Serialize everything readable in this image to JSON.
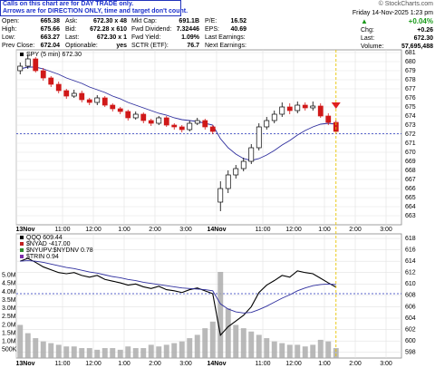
{
  "header": {
    "note": [
      "Calls on this chart are for DAY TRADE only.",
      "Arrows are for DIRECTION ONLY, time and target don't count."
    ],
    "copyright": "© StockCharts.com",
    "quote": [
      [
        [
          "Open:",
          "665.38"
        ],
        [
          "Ask:",
          "672.30 x 48"
        ],
        [
          "Mkt Cap:",
          "691.1B"
        ],
        [
          "P/E:",
          "16.52"
        ]
      ],
      [
        [
          "High:",
          "675.66"
        ],
        [
          "Bid:",
          "672.28 x 610"
        ],
        [
          "Fwd Dividend:",
          "7.32446"
        ],
        [
          "EPS:",
          "40.69"
        ]
      ],
      [
        [
          "Low:",
          "663.27"
        ],
        [
          "Last:",
          "672.30 x 1"
        ],
        [
          "Fwd Yield:",
          "1.09%"
        ],
        [
          "Last Earnings:"
        ]
      ],
      [
        [
          "Prev Close:",
          "672.04"
        ],
        [
          "Optionable:",
          "yes"
        ],
        [
          "SCTR (ETF):",
          "76.7"
        ],
        [
          "Next Earnings:"
        ]
      ]
    ],
    "date": "Friday 14-Nov-2025 1:23 pm",
    "change_pct": "+0.04%",
    "stats": [
      [
        "Chg:",
        "+0.26"
      ],
      [
        "Last:",
        "672.30"
      ],
      [
        "Volume:",
        "57,695,488"
      ]
    ]
  },
  "chart_data": [
    {
      "type": "candlestick",
      "legend": "SPY (5 min) 672.30",
      "up_color": "#000000",
      "down_color": "#d01818",
      "categories": [
        "13Nov",
        null,
        null,
        null,
        null,
        null,
        "11:00",
        null,
        null,
        null,
        "12:00",
        null,
        null,
        null,
        "1:00",
        null,
        null,
        null,
        "2:00",
        null,
        null,
        null,
        "3:00",
        null,
        null,
        null,
        "14Nov",
        null,
        null,
        null,
        null,
        null,
        "11:00",
        null,
        null,
        null,
        "12:00",
        null,
        null,
        null,
        "1:00",
        null,
        null,
        null,
        "2:00",
        null,
        null,
        null,
        "3:00",
        null
      ],
      "open": [
        679.0,
        679.5,
        680.3,
        679.0,
        678.2,
        677.5,
        676.8,
        676.2,
        676.5,
        675.8,
        675.5,
        676.0,
        675.2,
        674.8,
        674.5,
        673.8,
        674.2,
        673.5,
        673.2,
        673.8,
        673.0,
        672.8,
        672.5,
        673.2,
        673.5,
        672.8,
        664.5,
        666.0,
        667.5,
        668.2,
        669.0,
        670.5,
        672.8,
        673.5,
        674.2,
        675.0,
        674.6,
        675.2,
        674.9,
        675.1,
        674.0,
        673.3,
        null,
        null,
        null,
        null,
        null,
        null,
        null,
        null
      ],
      "high": [
        679.9,
        680.8,
        680.5,
        679.3,
        678.4,
        677.8,
        677.0,
        676.9,
        676.8,
        676.0,
        676.3,
        676.2,
        675.4,
        675.0,
        674.7,
        674.5,
        674.4,
        673.7,
        674.0,
        674.0,
        673.2,
        673.0,
        673.5,
        673.8,
        673.7,
        673.0,
        666.8,
        668.0,
        668.6,
        669.4,
        670.9,
        673.2,
        673.9,
        674.6,
        675.5,
        675.4,
        675.6,
        675.5,
        675.6,
        675.4,
        674.3,
        673.6,
        null,
        null,
        null,
        null,
        null,
        null,
        null,
        null
      ],
      "low": [
        678.6,
        679.2,
        678.8,
        677.9,
        677.2,
        676.5,
        675.9,
        676.0,
        675.5,
        675.2,
        675.2,
        675.0,
        674.5,
        674.2,
        673.5,
        673.6,
        673.2,
        672.9,
        673.0,
        672.8,
        672.5,
        672.2,
        672.3,
        673.0,
        672.5,
        672.0,
        663.5,
        665.5,
        667.1,
        667.9,
        668.7,
        670.2,
        672.5,
        673.2,
        673.9,
        674.2,
        674.3,
        674.6,
        674.6,
        673.8,
        673.0,
        672.0,
        null,
        null,
        null,
        null,
        null,
        null,
        null,
        null
      ],
      "close": [
        679.5,
        680.3,
        679.0,
        678.2,
        677.5,
        676.8,
        676.2,
        676.5,
        675.8,
        675.5,
        676.0,
        675.2,
        674.8,
        674.5,
        673.8,
        674.2,
        673.5,
        673.2,
        673.8,
        673.0,
        672.8,
        672.5,
        673.2,
        673.5,
        672.8,
        672.3,
        666.0,
        667.5,
        668.2,
        669.0,
        670.5,
        672.8,
        673.5,
        674.2,
        675.0,
        674.6,
        675.2,
        674.9,
        675.1,
        674.0,
        673.3,
        672.3,
        null,
        null,
        null,
        null,
        null,
        null,
        null,
        null
      ],
      "ma": {
        "color": "#2e2e9e",
        "values": [
          679.2,
          679.4,
          679.4,
          679.2,
          678.9,
          678.6,
          678.2,
          677.9,
          677.6,
          677.2,
          676.9,
          676.6,
          676.2,
          675.9,
          675.5,
          675.2,
          674.9,
          674.6,
          674.3,
          674.1,
          673.8,
          673.6,
          673.5,
          673.4,
          673.2,
          673.0,
          671.5,
          670.5,
          669.8,
          669.3,
          669.1,
          669.3,
          669.7,
          670.2,
          670.8,
          671.3,
          671.9,
          672.4,
          672.8,
          673.1,
          673.2,
          673.1,
          null,
          null,
          null,
          null,
          null,
          null,
          null,
          null
        ]
      },
      "hline": 672.04,
      "ylim": [
        662,
        681.3
      ],
      "yticks": [
        663,
        664,
        665,
        666,
        667,
        668,
        669,
        670,
        671,
        672,
        673,
        674,
        675,
        676,
        677,
        678,
        679,
        680,
        681
      ],
      "grid": true
    },
    {
      "type": "line",
      "legend": [
        "QQQ 609.44",
        "$NYAD -417.00",
        "$NYUPV:$NYDNV 0.78",
        "$TRIN 0.94"
      ],
      "series": [
        {
          "color": "#000000",
          "values": [
            614,
            614.5,
            613.8,
            613,
            612.5,
            612,
            611.8,
            612,
            611.5,
            611.2,
            611.5,
            610.8,
            610.5,
            610.2,
            609.8,
            610,
            609.5,
            609.2,
            609.6,
            609,
            608.8,
            608.5,
            609,
            609.3,
            608.8,
            608.3,
            601,
            602.5,
            603.5,
            604.5,
            606,
            608.5,
            609.8,
            610.6,
            611.5,
            611.2,
            612.3,
            612,
            611.8,
            611,
            610.2,
            609.44,
            null,
            null,
            null,
            null,
            null,
            null,
            null,
            null
          ]
        },
        {
          "color": "#2e2e9e",
          "values": [
            614,
            614.1,
            614,
            613.8,
            613.5,
            613.2,
            612.9,
            612.7,
            612.4,
            612.1,
            611.9,
            611.6,
            611.3,
            611.1,
            610.8,
            610.6,
            610.3,
            610.1,
            609.9,
            609.7,
            609.5,
            609.3,
            609.2,
            609.1,
            609,
            608.8,
            606.5,
            605.6,
            605.1,
            604.9,
            605,
            605.5,
            606.1,
            606.8,
            607.5,
            608.1,
            608.8,
            609.3,
            609.7,
            609.9,
            610,
            609.9,
            null,
            null,
            null,
            null,
            null,
            null,
            null,
            null
          ]
        },
        {
          "type": "bar",
          "axis": "y2",
          "color": "#a8a8a8",
          "values": [
            2000000,
            1500000,
            1200000,
            1000000,
            900000,
            800000,
            700000,
            700000,
            600000,
            600000,
            500000,
            600000,
            600000,
            500000,
            700000,
            600000,
            600000,
            800000,
            700000,
            800000,
            900000,
            1000000,
            1200000,
            1400000,
            1800000,
            2200000,
            5200000,
            3000000,
            2000000,
            1800000,
            1600000,
            1400000,
            1200000,
            1000000,
            900000,
            800000,
            800000,
            700000,
            800000,
            1100000,
            1000000,
            600000,
            null,
            null,
            null,
            null,
            null,
            null,
            null,
            null
          ]
        }
      ],
      "hline": 608.3,
      "ylim": [
        597,
        618.8
      ],
      "yticks": [
        598,
        600,
        602,
        604,
        606,
        608,
        610,
        612,
        614,
        616,
        618
      ],
      "y2lim": [
        0,
        7500000
      ],
      "y2ticks": [
        {
          "value": 500000,
          "label": "500K"
        },
        {
          "value": 1000000,
          "label": "1.0M"
        },
        {
          "value": 1500000,
          "label": "1.5M"
        },
        {
          "value": 2000000,
          "label": "2.0M"
        },
        {
          "value": 2500000,
          "label": "2.5M"
        },
        {
          "value": 3000000,
          "label": "3.0M"
        },
        {
          "value": 3500000,
          "label": "3.5M"
        },
        {
          "value": 4000000,
          "label": "4.0M"
        },
        {
          "value": 4500000,
          "label": "4.5M"
        },
        {
          "value": 5000000,
          "label": "5.0M"
        }
      ],
      "grid": true
    }
  ]
}
